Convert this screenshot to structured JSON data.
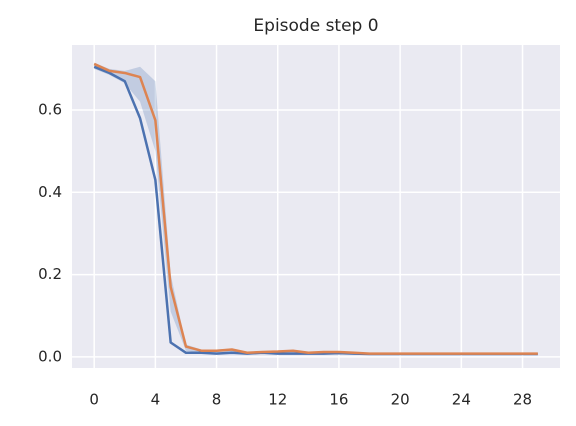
{
  "chart_data": {
    "type": "line",
    "title": "Episode step 0",
    "x": [
      0,
      1,
      2,
      3,
      4,
      5,
      6,
      7,
      8,
      9,
      10,
      11,
      12,
      13,
      14,
      15,
      16,
      17,
      18,
      19,
      20,
      21,
      22,
      23,
      24,
      25,
      26,
      27,
      28,
      29
    ],
    "series": [
      {
        "color": "#4c72b0",
        "values": [
          0.705,
          0.69,
          0.67,
          0.58,
          0.43,
          0.035,
          0.01,
          0.01,
          0.008,
          0.01,
          0.008,
          0.01,
          0.008,
          0.008,
          0.008,
          0.008,
          0.009,
          0.008,
          0.007,
          0.007,
          0.007,
          0.007,
          0.007,
          0.007,
          0.007,
          0.007,
          0.007,
          0.007,
          0.007,
          0.007
        ]
      },
      {
        "color": "#dd8452",
        "values": [
          0.712,
          0.695,
          0.69,
          0.68,
          0.575,
          0.17,
          0.025,
          0.015,
          0.015,
          0.018,
          0.01,
          0.012,
          0.013,
          0.015,
          0.01,
          0.012,
          0.012,
          0.01,
          0.008,
          0.008,
          0.008,
          0.008,
          0.008,
          0.008,
          0.008,
          0.008,
          0.008,
          0.008,
          0.008,
          0.008
        ]
      }
    ],
    "band": {
      "color": "#4c72b0",
      "upper": [
        0.715,
        0.7,
        0.695,
        0.705,
        0.67,
        0.2,
        0.03,
        0.018,
        0.018,
        0.02,
        0.012,
        0.014,
        0.014,
        0.016,
        0.012,
        0.013,
        0.013,
        0.011,
        0.009,
        0.009,
        0.009,
        0.009,
        0.009,
        0.009,
        0.009,
        0.009,
        0.009,
        0.009,
        0.009,
        0.009
      ],
      "lower": [
        0.7,
        0.685,
        0.665,
        0.62,
        0.5,
        0.11,
        0.015,
        0.01,
        0.008,
        0.01,
        0.008,
        0.009,
        0.008,
        0.008,
        0.008,
        0.008,
        0.008,
        0.007,
        0.006,
        0.006,
        0.006,
        0.006,
        0.006,
        0.006,
        0.006,
        0.006,
        0.006,
        0.006,
        0.006,
        0.006
      ]
    },
    "xlim": [
      -1.45,
      30.45
    ],
    "ylim": [
      -0.027,
      0.758
    ],
    "xticks": [
      0,
      4,
      8,
      12,
      16,
      20,
      24,
      28
    ],
    "yticks": [
      {
        "value": 0,
        "label": "0.0"
      },
      0.2,
      0.4,
      0.6
    ],
    "grid": true
  }
}
